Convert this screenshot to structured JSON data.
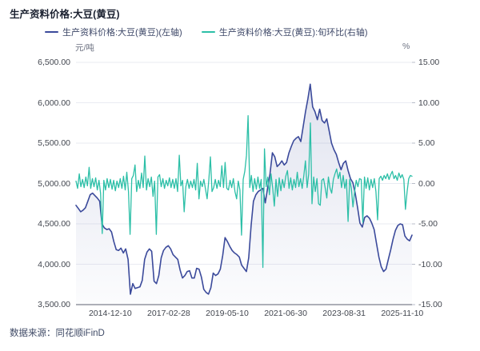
{
  "title": "生产资料价格:大豆(黄豆)",
  "legend": [
    {
      "label": "生产资料价格:大豆(黄豆)(左轴)",
      "color": "#3b4a9b"
    },
    {
      "label": "生产资料价格:大豆(黄豆):旬环比(右轴)",
      "color": "#2cbfa7"
    }
  ],
  "footer": {
    "source_label": "数据来源：同花顺iFinD"
  },
  "chart_data": {
    "type": "line",
    "title": "生产资料价格:大豆(黄豆)",
    "grid": true,
    "legend_position": "top",
    "grid_color": "#e9ebf2",
    "axis_line_color": "#5d6270",
    "tick_color": "#b8bdc9",
    "area_fill_top": "rgba(84,98,165,0.18)",
    "area_fill_bottom": "rgba(84,98,165,0.02)",
    "left_axis": {
      "unit": "元/吨",
      "ylim": [
        3500,
        6500
      ],
      "ticks": [
        "6,500.00",
        "6,000.00",
        "5,500.00",
        "5,000.00",
        "4,500.00",
        "4,000.00",
        "3,500.00"
      ]
    },
    "right_axis": {
      "unit": "%",
      "ylim": [
        -15,
        15
      ],
      "ticks": [
        "15.00",
        "10.00",
        "5.00",
        "0.00",
        "-5.00",
        "-10.00",
        "-15.00"
      ]
    },
    "x_axis": {
      "tick_labels": [
        "2014-12-10",
        "2017-02-28",
        "2019-05-10",
        "2021-06-30",
        "2023-08-31",
        "2025-11-10"
      ],
      "tick_positions": [
        0.102,
        0.276,
        0.45,
        0.624,
        0.798,
        0.971
      ]
    },
    "series": [
      {
        "name": "生产资料价格:大豆(黄豆)(左轴)",
        "axis": "left",
        "color": "#3b4a9b",
        "width": 1.6,
        "area": true,
        "values": [
          4730,
          4690,
          4650,
          4670,
          4700,
          4780,
          4860,
          4880,
          4850,
          4820,
          4780,
          4500,
          4450,
          4430,
          4440,
          4400,
          4280,
          4180,
          4170,
          4200,
          4140,
          4190,
          4060,
          3630,
          3760,
          3700,
          3710,
          3720,
          3800,
          4060,
          4150,
          4190,
          4160,
          3790,
          3760,
          3860,
          4080,
          4170,
          4210,
          4230,
          4190,
          4120,
          4090,
          4060,
          3930,
          3830,
          3860,
          3910,
          3920,
          3830,
          3830,
          3950,
          3940,
          3840,
          3690,
          3650,
          3630,
          3710,
          3890,
          3860,
          3880,
          3940,
          4110,
          4330,
          4280,
          4220,
          4170,
          4140,
          4120,
          4090,
          3990,
          3950,
          3910,
          4080,
          4480,
          4780,
          4860,
          4900,
          4920,
          4940,
          4760,
          4950,
          5120,
          5380,
          5330,
          5210,
          5240,
          5280,
          5230,
          5260,
          5380,
          5460,
          5530,
          5560,
          5580,
          5520,
          5700,
          5890,
          6050,
          6230,
          5950,
          5890,
          5790,
          5920,
          5780,
          5750,
          5800,
          5650,
          5500,
          5420,
          5360,
          5260,
          5170,
          5250,
          5280,
          5160,
          5060,
          5010,
          4880,
          4700,
          4510,
          4460,
          4580,
          4600,
          4570,
          4510,
          4430,
          4260,
          4090,
          3970,
          3910,
          3940,
          4060,
          4180,
          4310,
          4420,
          4480,
          4500,
          4490,
          4350,
          4310,
          4290,
          4360
        ]
      },
      {
        "name": "生产资料价格:大豆(黄豆):旬环比(右轴)",
        "axis": "right",
        "color": "#2cbfa7",
        "width": 1.3,
        "area": false,
        "values": [
          0.3,
          -0.6,
          1.2,
          -0.4,
          0.5,
          -0.5,
          0.8,
          -0.3,
          2.0,
          -0.6,
          0.6,
          -0.4,
          0.7,
          -0.8,
          0.4,
          -1.2,
          -6.2,
          0.4,
          -0.8,
          0.6,
          -0.5,
          0.5,
          -0.7,
          0.4,
          -0.9,
          0.3,
          -0.5,
          0.6,
          -0.6,
          0.9,
          -0.8,
          1.4,
          -1.0,
          -6.3,
          0.6,
          1.0,
          2.3,
          -1.0,
          0.4,
          -0.6,
          1.3,
          -0.5,
          3.4,
          -0.8,
          0.6,
          -0.4,
          0.8,
          -1.6,
          0.3,
          -6.3,
          0.8,
          1.1,
          -0.4,
          0.6,
          -0.6,
          0.4,
          -0.3,
          0.7,
          -0.5,
          0.5,
          -0.6,
          0.6,
          -1.0,
          3.5,
          -0.3,
          0.4,
          -3.5,
          -0.4,
          0.5,
          -0.6,
          0.3,
          -0.5,
          0.5,
          -0.8,
          2.5,
          -1.9,
          0.3,
          -0.4,
          0.5,
          -0.7,
          -1.9,
          0.4,
          3.3,
          -1.0,
          -0.5,
          0.5,
          -0.6,
          0.4,
          -0.4,
          2.2,
          -0.5,
          2.6,
          -0.6,
          -0.8,
          0.4,
          -0.5,
          0.6,
          -1.0,
          -1.9,
          0.3,
          -0.8,
          -6.4,
          0.5,
          1.5,
          3.5,
          8.4,
          -0.5,
          1.0,
          -1.0,
          0.6,
          -0.7,
          0.8,
          -0.6,
          0.5,
          -10.4,
          4.3,
          -0.4,
          0.8,
          -1.4,
          1.2,
          -0.6,
          -2.8,
          0.5,
          -1.6,
          0.7,
          -0.9,
          0.5,
          -0.5,
          0.9,
          1.6,
          -0.6,
          0.7,
          -0.8,
          0.5,
          -0.5,
          1.4,
          -0.4,
          0.6,
          -0.6,
          1.0,
          2.8,
          -0.5,
          1.2,
          7.5,
          -2.5,
          0.8,
          -1.0,
          0.6,
          -2.5,
          -2.7,
          0.4,
          0.6,
          -0.5,
          -1.8,
          0.8,
          -0.6,
          -1.2,
          0.5,
          1.2,
          1.8,
          0.6,
          1.4,
          -0.5,
          1.0,
          -0.6,
          0.5,
          -4.7,
          0.5,
          -0.6,
          -2.9,
          -1.0,
          0.4,
          -0.4,
          0.6,
          0.5,
          -4.8,
          0.8,
          -0.6,
          0.7,
          -0.8,
          0.5,
          -0.5,
          0.6,
          -1.0,
          -4.5,
          0.6,
          0.9,
          0.4,
          1.0,
          0.6,
          1.2,
          0.5,
          1.1,
          1.5,
          0.6,
          1.0,
          0.4,
          1.3,
          0.7,
          1.1,
          0.5,
          -3.2,
          -1.0,
          0.6,
          1.0,
          0.9
        ]
      }
    ]
  }
}
